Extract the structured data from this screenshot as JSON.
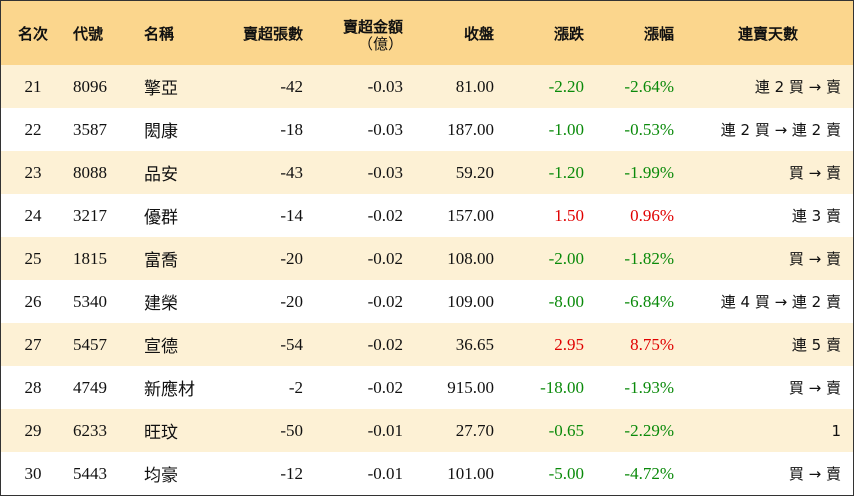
{
  "table": {
    "header": [
      {
        "label": "名次"
      },
      {
        "label": "代號"
      },
      {
        "label": "名稱"
      },
      {
        "label": "賣超張數"
      },
      {
        "label": "賣超金額",
        "sublabel": "（億）"
      },
      {
        "label": "收盤"
      },
      {
        "label": "漲跌"
      },
      {
        "label": "漲幅"
      },
      {
        "label": "連賣天數"
      }
    ],
    "rows": [
      [
        "21",
        "8096",
        "擎亞",
        "-42",
        "-0.03",
        "81.00",
        "-2.20",
        "-2.64%",
        "連 2 買 → 賣"
      ],
      [
        "22",
        "3587",
        "閎康",
        "-18",
        "-0.03",
        "187.00",
        "-1.00",
        "-0.53%",
        "連 2 買 → 連 2 賣"
      ],
      [
        "23",
        "8088",
        "品安",
        "-43",
        "-0.03",
        "59.20",
        "-1.20",
        "-1.99%",
        "買 → 賣"
      ],
      [
        "24",
        "3217",
        "優群",
        "-14",
        "-0.02",
        "157.00",
        "1.50",
        "0.96%",
        "連 3 賣"
      ],
      [
        "25",
        "1815",
        "富喬",
        "-20",
        "-0.02",
        "108.00",
        "-2.00",
        "-1.82%",
        "買 → 賣"
      ],
      [
        "26",
        "5340",
        "建榮",
        "-20",
        "-0.02",
        "109.00",
        "-8.00",
        "-6.84%",
        "連 4 買 → 連 2 賣"
      ],
      [
        "27",
        "5457",
        "宣德",
        "-54",
        "-0.02",
        "36.65",
        "2.95",
        "8.75%",
        "連 5 賣"
      ],
      [
        "28",
        "4749",
        "新應材",
        "-2",
        "-0.02",
        "915.00",
        "-18.00",
        "-1.93%",
        "買 → 賣"
      ],
      [
        "29",
        "6233",
        "旺玟",
        "-50",
        "-0.01",
        "27.70",
        "-0.65",
        "-2.29%",
        "1"
      ],
      [
        "30",
        "5443",
        "均豪",
        "-12",
        "-0.01",
        "101.00",
        "-5.00",
        "-4.72%",
        "買 → 賣"
      ]
    ]
  }
}
